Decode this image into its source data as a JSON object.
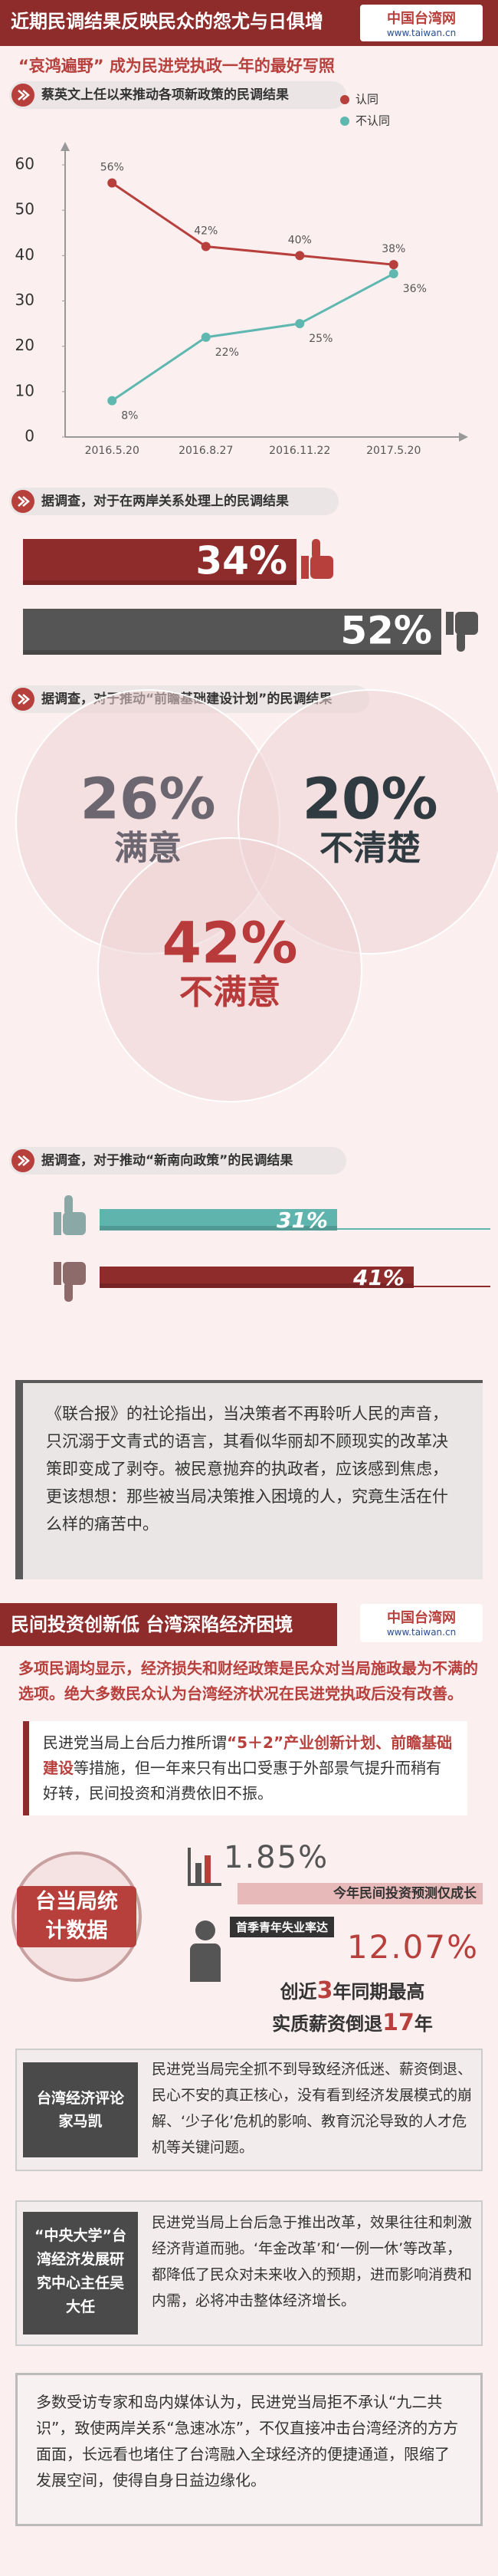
{
  "header": {
    "title": "近期民调结果反映民众的怨尤与日俱增",
    "logo_cn": "中国台湾网",
    "logo_url": "www.taiwan.cn"
  },
  "subtitle": "“哀鸿遍野” 成为民进党执政一年的最好写照",
  "chart_data": [
    {
      "type": "line",
      "title": "蔡英文上任以来推动各项新政策的民调结果",
      "categories": [
        "2016.5.20",
        "2016.8.27",
        "2016.11.22",
        "2017.5.20"
      ],
      "series": [
        {
          "name": "认同",
          "color": "#b8403c",
          "values": [
            56,
            42,
            40,
            38
          ],
          "value_labels": [
            "56%",
            "42%",
            "40%",
            "38%"
          ]
        },
        {
          "name": "不认同",
          "color": "#5fb8b0",
          "values": [
            8,
            22,
            25,
            36
          ],
          "value_labels": [
            "8%",
            "22%",
            "25%",
            "36%"
          ]
        }
      ],
      "ylim": [
        0,
        60
      ],
      "yticks": [
        0,
        10,
        20,
        30,
        40,
        50,
        60
      ],
      "grid": false
    },
    {
      "type": "bar",
      "title": "据调查，对于在两岸关系处理上的民调结果",
      "values": [
        34,
        52
      ],
      "value_labels": [
        "34%",
        "52%"
      ],
      "colors": [
        "#8e2b2b",
        "#555555"
      ]
    },
    {
      "type": "venn",
      "title": "据调查，对于推动“前瞻基础建设计划”的民调结果",
      "categories": [
        "满意",
        "不清楚",
        "不满意"
      ],
      "values": [
        26,
        20,
        42
      ],
      "value_labels": [
        "26%",
        "20%",
        "42%"
      ],
      "colors": [
        "#6b6670",
        "#2f3b40",
        "#b83a3a"
      ]
    },
    {
      "type": "bar",
      "title": "据调查，对于推动“新南向政策”的民调结果",
      "values": [
        31,
        41
      ],
      "value_labels": [
        "31%",
        "41%"
      ],
      "colors": [
        "#5fb5ad",
        "#8e2b2b"
      ]
    }
  ],
  "commentary": "《联合报》的社论指出，当决策者不再聆听人民的声音，只沉溺于文青式的语言，其看似华丽却不顾现实的改革决策即变成了剥夺。被民意抛弃的执政者，应该感到焦虑，更该想想：那些被当局决策推入困境的人，究竟生活在什么样的痛苦中。",
  "section2": {
    "title": "民间投资创新低 台湾深陷经济困境",
    "logo_cn": "中国台湾网",
    "logo_url": "www.taiwan.cn",
    "lead": "多项民调均显示，经济损失和财经政策是民众对当局施政最为不满的选项。绝大多数民众认为台湾经济状况在民进党执政后没有改善。",
    "box_parts": [
      "民进党当局上台后力推所谓",
      "“5＋2”产业创新计划、",
      "前瞻基础建设",
      "等措施，但一年来只有出口受惠于外部景气提升而稍有好转，民间投资和消费依旧不振。"
    ],
    "stats": {
      "label": "台当局统计数据",
      "investment_value": "1.85%",
      "investment_text": "今年民间投资预测仅成长",
      "unemployment_text": "首季青年失业率达",
      "unemployment_value": "12.07%",
      "record_parts": [
        "创近",
        "3",
        "年同期最高"
      ],
      "wage_parts": [
        "实质薪资倒退",
        "17",
        "年"
      ]
    },
    "experts": [
      {
        "name": "台湾经济评论家马凯",
        "text": "民进党当局完全抓不到导致经济低迷、薪资倒退、民心不安的真正核心，没有看到经济发展模式的崩解、‘少子化’危机的影响、教育沉沦导致的人才危机等关键问题。"
      },
      {
        "name": "“中央大学”台湾经济发展研究中心主任吴大任",
        "text": "民进党当局上台后急于推出改革，效果往往和刺激经济背道而驰。‘年金改革’和‘一例一休’等改革，都降低了民众对未来收入的预期，进而影响消费和内需，必将冲击整体经济增长。"
      }
    ],
    "closing": "多数受访专家和岛内媒体认为，民进党当局拒不承认“九二共识”，致使两岸关系“急速冰冻”，不仅直接冲击台湾经济的方方面面，长远看也堵住了台湾融入全球经济的便捷通道，限缩了发展空间，使得自身日益边缘化。"
  }
}
